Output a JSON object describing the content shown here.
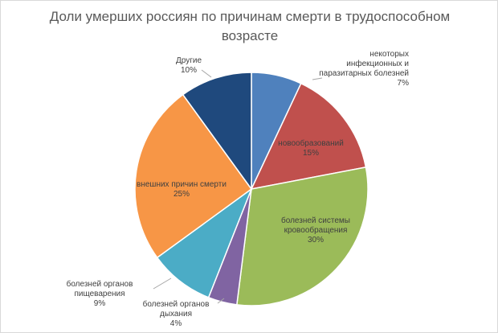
{
  "chart_data": {
    "type": "pie",
    "title": "Доли умерших россиян по причинам смерти в трудоспособном возрасте",
    "slices": [
      {
        "label": "некоторых инфекционных и паразитарных болезней",
        "value": 7,
        "value_label": "7%",
        "color": "#4f81bd"
      },
      {
        "label": "новообразований",
        "value": 15,
        "value_label": "15%",
        "color": "#c0504d"
      },
      {
        "label": "болезней системы кровообращения",
        "value": 30,
        "value_label": "30%",
        "color": "#9bbb59"
      },
      {
        "label": "болезней органов дыхания",
        "value": 4,
        "value_label": "4%",
        "color": "#8064a2"
      },
      {
        "label": "болезней органов пищеварения",
        "value": 9,
        "value_label": "9%",
        "color": "#4bacc6"
      },
      {
        "label": "внешних причин смерти",
        "value": 25,
        "value_label": "25%",
        "color": "#f79646"
      },
      {
        "label": "Другие",
        "value": 10,
        "value_label": "10%",
        "color": "#1f497d"
      }
    ]
  }
}
